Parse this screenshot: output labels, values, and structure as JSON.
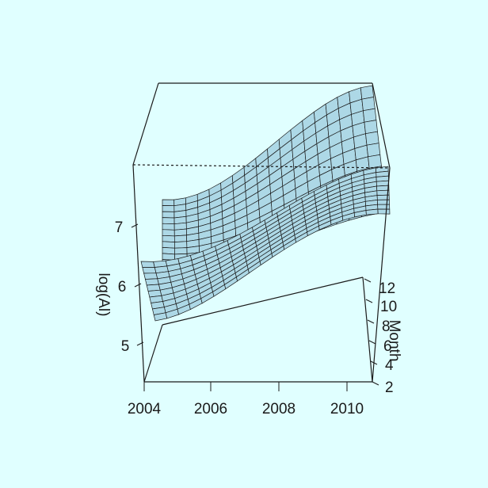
{
  "chart_data": {
    "type": "surface3d",
    "title": "",
    "xlabel": "",
    "ylabel": "Month",
    "zlabel": "log(Al)",
    "x_ticks": [
      "2004",
      "2006",
      "2008",
      "2010"
    ],
    "y_ticks": [
      "2",
      "4",
      "6",
      "8",
      "10",
      "12"
    ],
    "z_ticks": [
      "5",
      "6",
      "7"
    ],
    "xlim": [
      2004,
      2011
    ],
    "ylim": [
      1,
      12
    ],
    "zlim": [
      4.5,
      7.9
    ],
    "grid": false,
    "surface_color": "#add8e6",
    "line_color": "#1a1a1a",
    "background": "#e0ffff",
    "surfaces": [
      {
        "x": [
          2004,
          2011
        ],
        "y_from": [
          5.55,
          7.25
        ],
        "y_to": [
          6.15,
          7.85
        ]
      },
      {
        "x": [
          2004,
          2011
        ],
        "z_path": [
          [
            2004,
            5.9
          ],
          [
            2006,
            6.05
          ],
          [
            2007,
            6.05
          ],
          [
            2008,
            6.15
          ],
          [
            2009,
            6.5
          ],
          [
            2010,
            7.0
          ],
          [
            2011,
            7.25
          ]
        ],
        "z_path_front": [
          [
            2004,
            6.45
          ],
          [
            2006,
            6.5
          ],
          [
            2007,
            6.55
          ],
          [
            2008,
            6.7
          ],
          [
            2009,
            6.95
          ],
          [
            2010,
            7.3
          ],
          [
            2011,
            7.45
          ]
        ]
      }
    ]
  }
}
